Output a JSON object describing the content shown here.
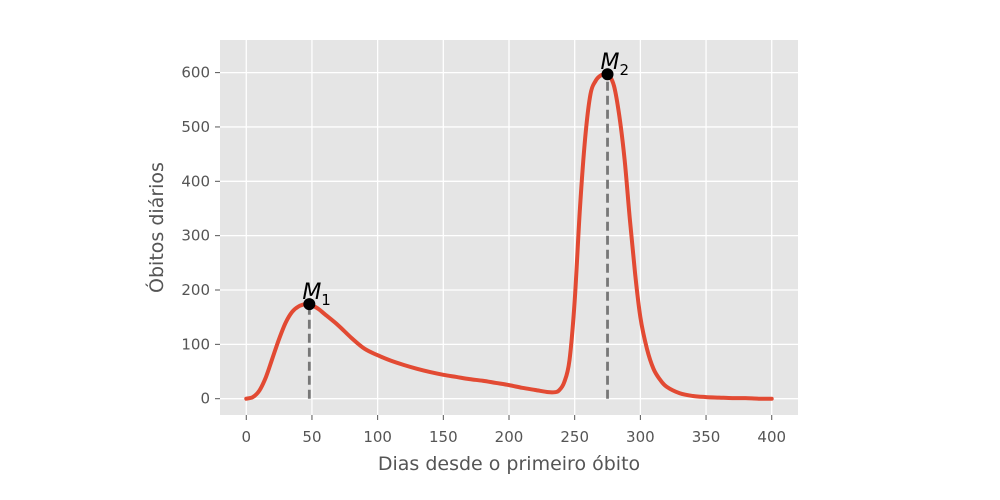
{
  "chart_data": {
    "type": "line",
    "xlabel": "Dias desde o primeiro óbito",
    "ylabel": "Óbitos diários",
    "xlim": [
      -20,
      420
    ],
    "ylim": [
      -30,
      660
    ],
    "x_ticks": [
      0,
      50,
      100,
      150,
      200,
      250,
      300,
      350,
      400
    ],
    "y_ticks": [
      0,
      100,
      200,
      300,
      400,
      500,
      600
    ],
    "grid": true,
    "style": "ggplot",
    "colors": {
      "line": "#e24a33",
      "background": "#e5e5e5",
      "grid": "#ffffff",
      "vline": "#777777",
      "marker": "#000000"
    },
    "series": [
      {
        "x": [
          0,
          5,
          10,
          15,
          20,
          25,
          30,
          35,
          40,
          45,
          48,
          50,
          55,
          60,
          70,
          80,
          90,
          100,
          110,
          120,
          130,
          140,
          150,
          160,
          170,
          180,
          190,
          200,
          210,
          220,
          230,
          235,
          238,
          242,
          246,
          250,
          254,
          258,
          262,
          266,
          270,
          274,
          276,
          280,
          284,
          288,
          292,
          296,
          300,
          305,
          310,
          315,
          320,
          330,
          340,
          350,
          360,
          370,
          380,
          390,
          400
        ],
        "y": [
          0,
          3,
          15,
          40,
          75,
          110,
          140,
          160,
          170,
          174,
          174,
          172,
          165,
          155,
          135,
          112,
          92,
          80,
          70,
          62,
          55,
          49,
          44,
          40,
          36,
          33,
          29,
          25,
          20,
          16,
          12,
          12,
          15,
          30,
          70,
          180,
          350,
          480,
          560,
          585,
          595,
          597,
          596,
          575,
          520,
          440,
          330,
          230,
          150,
          92,
          55,
          35,
          22,
          10,
          5,
          3,
          2,
          1,
          1,
          0,
          0
        ]
      }
    ],
    "markers": [
      {
        "label": "M",
        "subscript": "1",
        "x": 48,
        "y": 174
      },
      {
        "label": "M",
        "subscript": "2",
        "x": 275,
        "y": 597
      }
    ]
  }
}
